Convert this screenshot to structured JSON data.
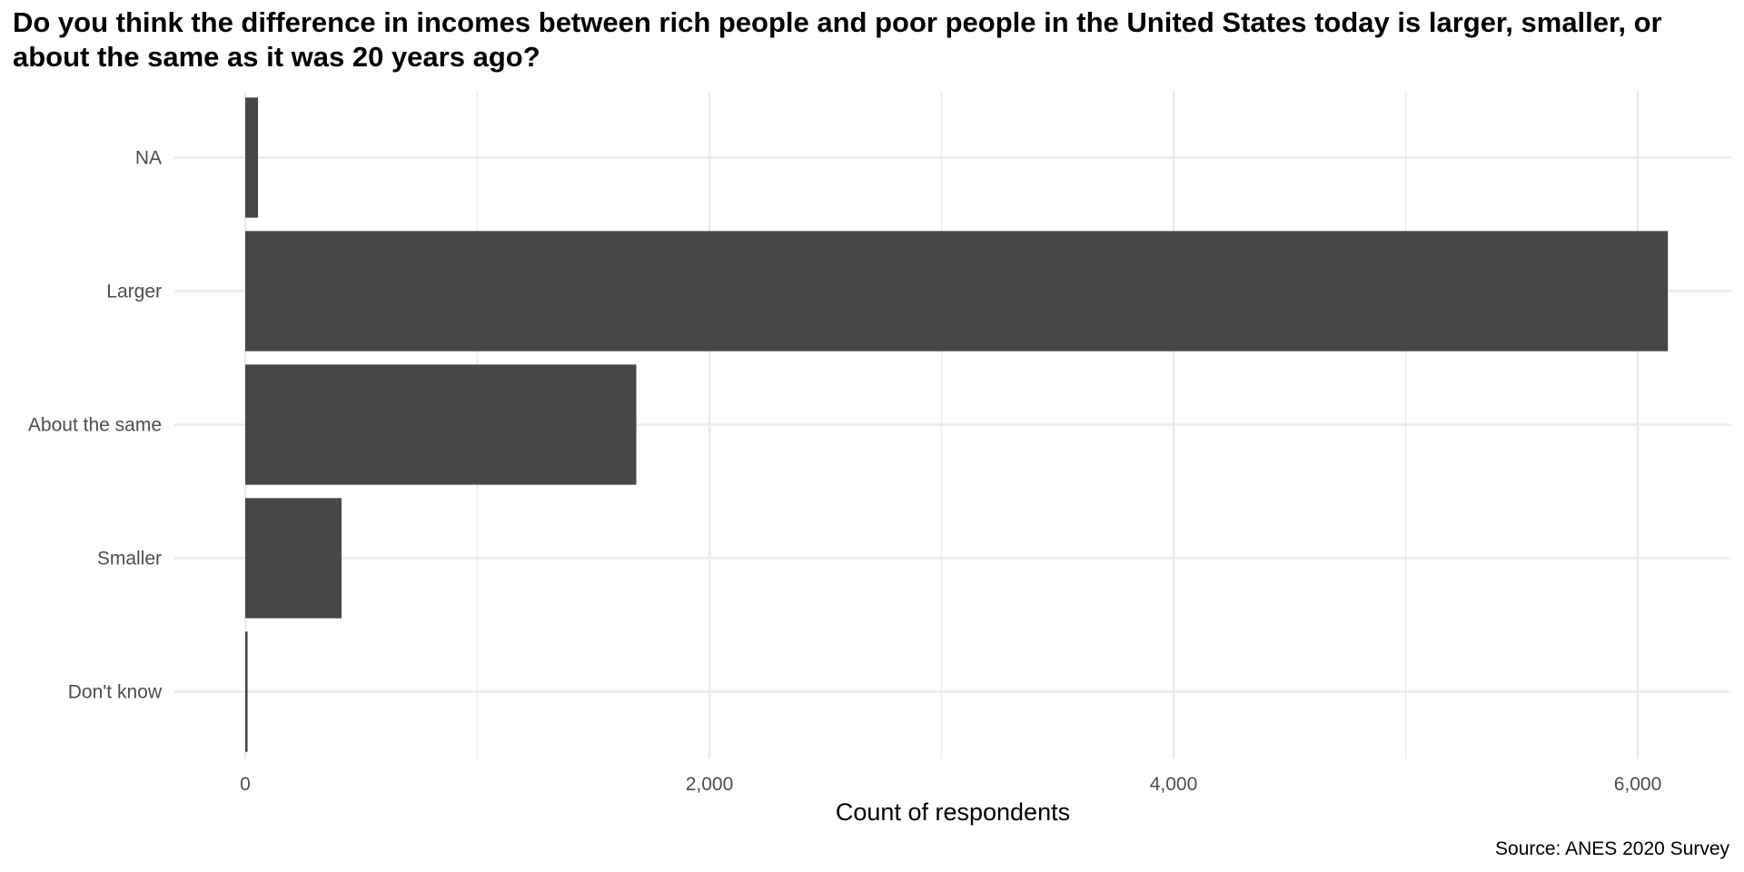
{
  "chart_data": {
    "type": "bar",
    "orientation": "horizontal",
    "title": "Do you think the difference in incomes between rich people and poor people in the United States today is larger, smaller, or about the same as it was 20 years ago?",
    "xlabel": "Count of respondents",
    "ylabel": "",
    "caption": "Source: ANES 2020 Survey",
    "categories": [
      "NA",
      "Larger",
      "About the same",
      "Smaller",
      "Don't know"
    ],
    "values": [
      55,
      6130,
      1685,
      415,
      10
    ],
    "xlim": [
      0,
      6500
    ],
    "x_ticks": [
      0,
      2000,
      4000,
      6000
    ],
    "x_tick_labels": [
      "0",
      "2,000",
      "4,000",
      "6,000"
    ],
    "grid": true,
    "legend": "none",
    "bar_color": "#474747",
    "grid_color": "#ebebeb"
  }
}
